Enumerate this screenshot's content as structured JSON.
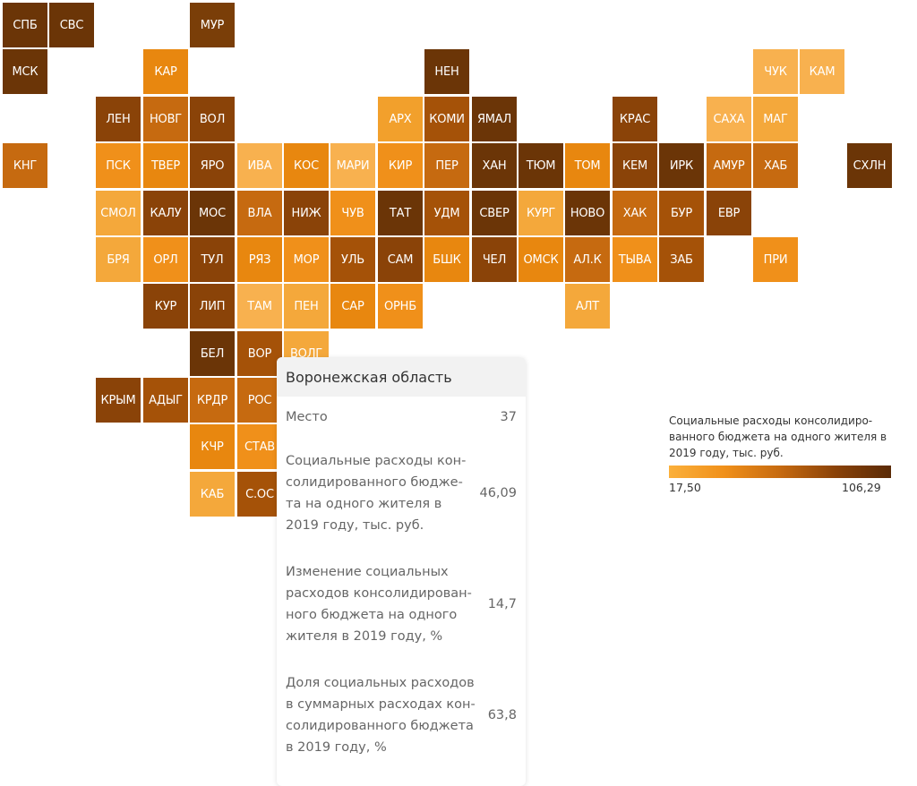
{
  "tiles": [
    {
      "label": "СПБ",
      "color": "#6b3507"
    },
    {
      "label": "СВС",
      "color": "#6b3507"
    },
    {
      "label": "МУР",
      "color": "#7a3e08"
    },
    {
      "label": "МСК",
      "color": "#6b3507"
    },
    {
      "label": "КАР",
      "color": "#e8870f"
    },
    {
      "label": "НЕН",
      "color": "#6b3507"
    },
    {
      "label": "ЧУК",
      "color": "#f8b14f"
    },
    {
      "label": "КАМ",
      "color": "#f8b14f"
    },
    {
      "label": "ЛЕН",
      "color": "#8a4308"
    },
    {
      "label": "НОВГ",
      "color": "#c66a10"
    },
    {
      "label": "ВОЛ",
      "color": "#8a4308"
    },
    {
      "label": "АРХ",
      "color": "#f2a02c"
    },
    {
      "label": "КОМИ",
      "color": "#a55208"
    },
    {
      "label": "ЯМАЛ",
      "color": "#6b3507"
    },
    {
      "label": "КРАС",
      "color": "#8a4308"
    },
    {
      "label": "САХА",
      "color": "#f8b14f"
    },
    {
      "label": "МАГ",
      "color": "#f4a83b"
    },
    {
      "label": "КНГ",
      "color": "#c66a10"
    },
    {
      "label": "ПСК",
      "color": "#f0901a"
    },
    {
      "label": "ТВЕР",
      "color": "#e8870f"
    },
    {
      "label": "ЯРО",
      "color": "#8a4308"
    },
    {
      "label": "ИВА",
      "color": "#f8b14f"
    },
    {
      "label": "КОС",
      "color": "#e8870f"
    },
    {
      "label": "МАРИ",
      "color": "#f8b14f"
    },
    {
      "label": "КИР",
      "color": "#f0901a"
    },
    {
      "label": "ПЕР",
      "color": "#c66a10"
    },
    {
      "label": "ХАН",
      "color": "#6b3507"
    },
    {
      "label": "ТЮМ",
      "color": "#6b3507"
    },
    {
      "label": "ТОМ",
      "color": "#e8870f"
    },
    {
      "label": "КЕМ",
      "color": "#8a4308"
    },
    {
      "label": "ИРК",
      "color": "#6b3507"
    },
    {
      "label": "АМУР",
      "color": "#c66a10"
    },
    {
      "label": "ХАБ",
      "color": "#c66a10"
    },
    {
      "label": "СХЛН",
      "color": "#6b3507"
    },
    {
      "label": "СМОЛ",
      "color": "#f4a83b"
    },
    {
      "label": "КАЛУ",
      "color": "#8a4308"
    },
    {
      "label": "МОС",
      "color": "#6b3507"
    },
    {
      "label": "ВЛА",
      "color": "#c66a10"
    },
    {
      "label": "НИЖ",
      "color": "#8a4308"
    },
    {
      "label": "ЧУВ",
      "color": "#f0901a"
    },
    {
      "label": "ТАТ",
      "color": "#6b3507"
    },
    {
      "label": "УДМ",
      "color": "#a55208"
    },
    {
      "label": "СВЕР",
      "color": "#6b3507"
    },
    {
      "label": "КУРГ",
      "color": "#f4a83b"
    },
    {
      "label": "НОВО",
      "color": "#6b3507"
    },
    {
      "label": "ХАК",
      "color": "#c66a10"
    },
    {
      "label": "БУР",
      "color": "#a55208"
    },
    {
      "label": "ЕВР",
      "color": "#8a4308"
    },
    {
      "label": "БРЯ",
      "color": "#f4a83b"
    },
    {
      "label": "ОРЛ",
      "color": "#f0901a"
    },
    {
      "label": "ТУЛ",
      "color": "#8a4308"
    },
    {
      "label": "РЯЗ",
      "color": "#e8870f"
    },
    {
      "label": "МОР",
      "color": "#f0901a"
    },
    {
      "label": "УЛЬ",
      "color": "#a55208"
    },
    {
      "label": "САМ",
      "color": "#8a4308"
    },
    {
      "label": "БШК",
      "color": "#e8870f"
    },
    {
      "label": "ЧЕЛ",
      "color": "#8a4308"
    },
    {
      "label": "ОМСК",
      "color": "#e8870f"
    },
    {
      "label": "АЛ.К",
      "color": "#c66a10"
    },
    {
      "label": "ТЫВА",
      "color": "#f0901a"
    },
    {
      "label": "ЗАБ",
      "color": "#a55208"
    },
    {
      "label": "ПРИ",
      "color": "#f0901a"
    },
    {
      "label": "КУР",
      "color": "#8a4308"
    },
    {
      "label": "ЛИП",
      "color": "#8a4308"
    },
    {
      "label": "ТАМ",
      "color": "#f8b14f"
    },
    {
      "label": "ПЕН",
      "color": "#f4a83b"
    },
    {
      "label": "САР",
      "color": "#e8870f"
    },
    {
      "label": "ОРНБ",
      "color": "#f0901a"
    },
    {
      "label": "АЛТ",
      "color": "#f4a83b"
    },
    {
      "label": "БЕЛ",
      "color": "#6b3507"
    },
    {
      "label": "ВОР",
      "color": "#a55208"
    },
    {
      "label": "ВОЛГ",
      "color": "#f4a83b"
    },
    {
      "label": "КРЫМ",
      "color": "#8a4308"
    },
    {
      "label": "АДЫГ",
      "color": "#a55208"
    },
    {
      "label": "КРДР",
      "color": "#c66a10"
    },
    {
      "label": "РОС",
      "color": "#c66a10"
    },
    {
      "label": "КЧР",
      "color": "#e8870f"
    },
    {
      "label": "СТАВ",
      "color": "#f0901a"
    },
    {
      "label": "КАБ",
      "color": "#f4a83b"
    },
    {
      "label": "С.ОС",
      "color": "#a55208"
    }
  ],
  "tooltip": {
    "title": "Воронежская область",
    "rows": [
      {
        "label": "Место",
        "value": "37"
      },
      {
        "label": "Социальные расходы кон- солидированного бюдже- та на одного жителя в 2019 году, тыс. руб.",
        "value": "46,09"
      },
      {
        "label": "Изменение социальных расходов консолидирован- ного бюджета на одного жителя в 2019 году, %",
        "value": "14,7"
      },
      {
        "label": "Доля социальных расходов в суммарных расходах кон- солидированного бюджета в 2019 году, %",
        "value": "63,8"
      }
    ]
  },
  "legend": {
    "title": "Социальные расходы консолидиро- ванного бюджета на одного жителя в 2019 году, тыс. руб.",
    "min": "17,50",
    "max": "106,29",
    "color_low": "#fbb03b",
    "color_high": "#5a2a06"
  }
}
